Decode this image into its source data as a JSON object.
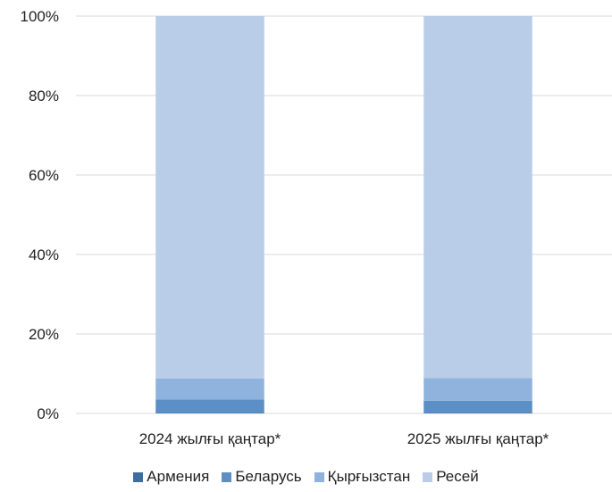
{
  "chart_data": {
    "type": "bar",
    "stacked": true,
    "percent": true,
    "categories": [
      "2024 жылғы қаңтар*",
      "2025 жылғы қаңтар*"
    ],
    "series": [
      {
        "name": "Армения",
        "color": "#3f6e9e",
        "values": [
          0.1,
          0.1
        ]
      },
      {
        "name": "Беларусь",
        "color": "#5b8fc6",
        "values": [
          3.4,
          3.1
        ]
      },
      {
        "name": "Қырғызстан",
        "color": "#8fb3dd",
        "values": [
          5.3,
          5.7
        ]
      },
      {
        "name": "Ресей",
        "color": "#b9cde8",
        "values": [
          91.2,
          91.1
        ]
      }
    ],
    "y_ticks": [
      "0%",
      "20%",
      "40%",
      "60%",
      "80%",
      "100%"
    ],
    "ylim": [
      0,
      100
    ],
    "grid": true,
    "legend_position": "bottom"
  }
}
